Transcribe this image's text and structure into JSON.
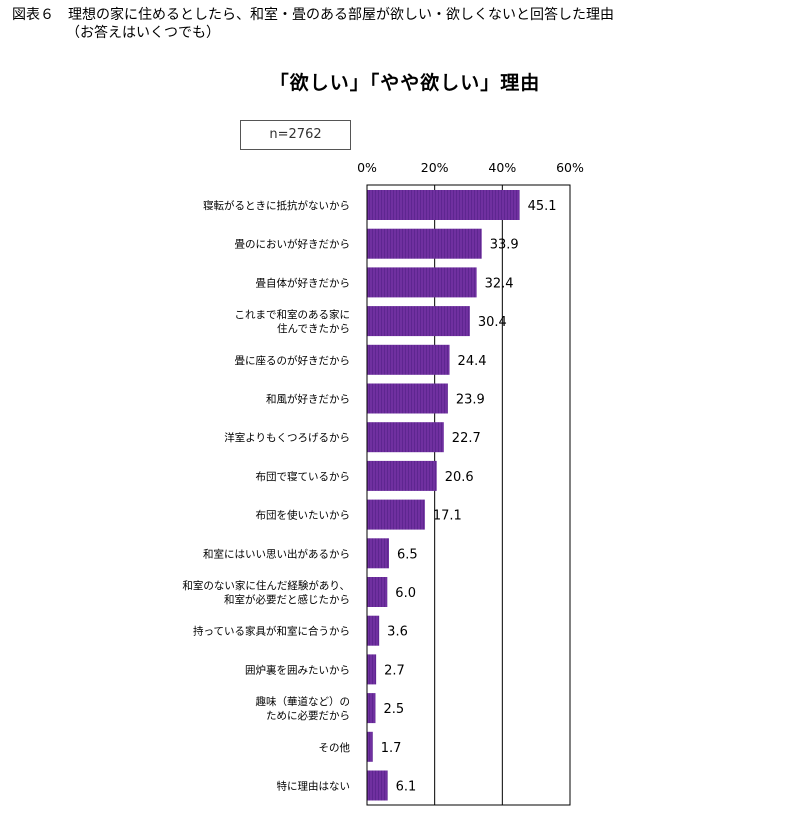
{
  "figure": {
    "title": "図表６　理想の家に住めるとしたら、和室・畳のある部屋が欲しい・欲しくないと回答した理由",
    "subtitle": "（お答えはいくつでも）"
  },
  "chart_data": {
    "type": "bar",
    "orientation": "horizontal",
    "title": "「欲しい」「やや欲しい」理由",
    "sample_note": "n=2762",
    "categories": [
      [
        "寝転がるときに抵抗がないから"
      ],
      [
        "畳のにおいが好きだから"
      ],
      [
        "畳自体が好きだから"
      ],
      [
        "これまで和室のある家に",
        "住んできたから"
      ],
      [
        "畳に座るのが好きだから"
      ],
      [
        "和風が好きだから"
      ],
      [
        "洋室よりもくつろげるから"
      ],
      [
        "布団で寝ているから"
      ],
      [
        "布団を使いたいから"
      ],
      [
        "和室にはいい思い出があるから"
      ],
      [
        "和室のない家に住んだ経験があり、",
        "和室が必要だと感じたから"
      ],
      [
        "持っている家具が和室に合うから"
      ],
      [
        "囲炉裏を囲みたいから"
      ],
      [
        "趣味（華道など）の",
        "ために必要だから"
      ],
      [
        "その他"
      ],
      [
        "特に理由はない"
      ]
    ],
    "values": [
      45.1,
      33.9,
      32.4,
      30.4,
      24.4,
      23.9,
      22.7,
      20.6,
      17.1,
      6.5,
      6.0,
      3.6,
      2.7,
      2.5,
      1.7,
      6.1
    ],
    "value_labels": [
      "45.1",
      "33.9",
      "32.4",
      "30.4",
      "24.4",
      "23.9",
      "22.7",
      "20.6",
      "17.1",
      "6.5",
      "6.0",
      "3.6",
      "2.7",
      "2.5",
      "1.7",
      "6.1"
    ],
    "xlim": [
      0,
      60
    ],
    "ticks": [
      0,
      20,
      40,
      60
    ],
    "tick_labels": [
      "0%",
      "20%",
      "40%",
      "60%"
    ],
    "grid": true,
    "bar_color": "#7030a0",
    "bar_shade_color": "#5e2690"
  }
}
